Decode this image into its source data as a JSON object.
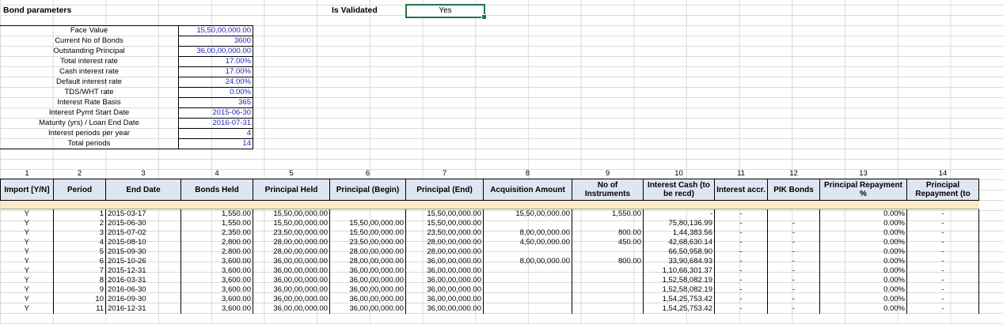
{
  "sheet": {
    "title": "Bond parameters",
    "validated_label": "Is Validated",
    "validated_value": "Yes"
  },
  "params": [
    {
      "label": "Face Value",
      "value": "15,50,00,000.00"
    },
    {
      "label": "Current No of Bonds",
      "value": "3600"
    },
    {
      "label": "Outstanding Principal",
      "value": "36,00,00,000.00"
    },
    {
      "label": "Total interest rate",
      "value": "17.00%"
    },
    {
      "label": "Cash interest rate",
      "value": "17.00%"
    },
    {
      "label": "Default interest rate",
      "value": "24.00%"
    },
    {
      "label": "TDS/WHT rate",
      "value": "0.00%"
    },
    {
      "label": "Interest Rate Basis",
      "value": "365"
    },
    {
      "label": "Interest Pymt Start Date",
      "value": "2015-06-30"
    },
    {
      "label": "Maturity (yrs) / Loan End Date",
      "value": "2016-07-31"
    },
    {
      "label": "Interest periods per year",
      "value": "4"
    },
    {
      "label": "Total periods",
      "value": "14"
    }
  ],
  "table": {
    "col_numbers": [
      "1",
      "2",
      "3",
      "4",
      "5",
      "6",
      "7",
      "8",
      "9",
      "10",
      "11",
      "12",
      "13",
      "14"
    ],
    "headers": [
      "Import [Y/N]",
      "Period",
      "End Date",
      "Bonds Held",
      "Principal Held",
      "Principal (Begin)",
      "Principal (End)",
      "Acquisition Amount",
      "No of Instruments",
      "Interest Cash (to be recd)",
      "Interest accr.",
      "PIK Bonds",
      "Principal Repayment %",
      "Principal Repayment (to"
    ],
    "rows": [
      [
        "Y",
        "1",
        "2015-03-17",
        "1,550.00",
        "15,50,00,000.00",
        "",
        "15,50,00,000.00",
        "15,50,00,000.00",
        "1,550.00",
        "-",
        "-",
        "",
        "0.00%",
        "-"
      ],
      [
        "Y",
        "2",
        "2015-06-30",
        "1,550.00",
        "15,50,00,000.00",
        "15,50,00,000.00",
        "15,50,00,000.00",
        "",
        "",
        "75,80,136.99",
        "-",
        "-",
        "0.00%",
        "-"
      ],
      [
        "Y",
        "3",
        "2015-07-02",
        "2,350.00",
        "23,50,00,000.00",
        "15,50,00,000.00",
        "23,50,00,000.00",
        "8,00,00,000.00",
        "800.00",
        "1,44,383.56",
        "-",
        "-",
        "0.00%",
        "-"
      ],
      [
        "Y",
        "4",
        "2015-08-10",
        "2,800.00",
        "28,00,00,000.00",
        "23,50,00,000.00",
        "28,00,00,000.00",
        "4,50,00,000.00",
        "450.00",
        "42,68,630.14",
        "-",
        "-",
        "0.00%",
        "-"
      ],
      [
        "Y",
        "5",
        "2015-09-30",
        "2,800.00",
        "28,00,00,000.00",
        "28,00,00,000.00",
        "28,00,00,000.00",
        "",
        "",
        "66,50,958.90",
        "-",
        "-",
        "0.00%",
        "-"
      ],
      [
        "Y",
        "6",
        "2015-10-26",
        "3,600.00",
        "36,00,00,000.00",
        "28,00,00,000.00",
        "36,00,00,000.00",
        "8,00,00,000.00",
        "800.00",
        "33,90,684.93",
        "-",
        "-",
        "0.00%",
        "-"
      ],
      [
        "Y",
        "7",
        "2015-12-31",
        "3,600.00",
        "36,00,00,000.00",
        "36,00,00,000.00",
        "36,00,00,000.00",
        "",
        "",
        "1,10,66,301.37",
        "-",
        "-",
        "0.00%",
        "-"
      ],
      [
        "Y",
        "8",
        "2016-03-31",
        "3,600.00",
        "36,00,00,000.00",
        "36,00,00,000.00",
        "36,00,00,000.00",
        "",
        "",
        "1,52,58,082.19",
        "-",
        "-",
        "0.00%",
        "-"
      ],
      [
        "Y",
        "9",
        "2016-06-30",
        "3,600.00",
        "36,00,00,000.00",
        "36,00,00,000.00",
        "36,00,00,000.00",
        "",
        "",
        "1,52,58,082.19",
        "-",
        "-",
        "0.00%",
        "-"
      ],
      [
        "Y",
        "10",
        "2016-09-30",
        "3,600.00",
        "36,00,00,000.00",
        "36,00,00,000.00",
        "36,00,00,000.00",
        "",
        "",
        "1,54,25,753.42",
        "-",
        "-",
        "0.00%",
        "-"
      ],
      [
        "Y",
        "11",
        "2016-12-31",
        "3,600.00",
        "36,00,00,000.00",
        "36,00,00,000.00",
        "36,00,00,000.00",
        "",
        "",
        "1,54,25,753.42",
        "-",
        "-",
        "0.00%",
        "-"
      ]
    ]
  }
}
